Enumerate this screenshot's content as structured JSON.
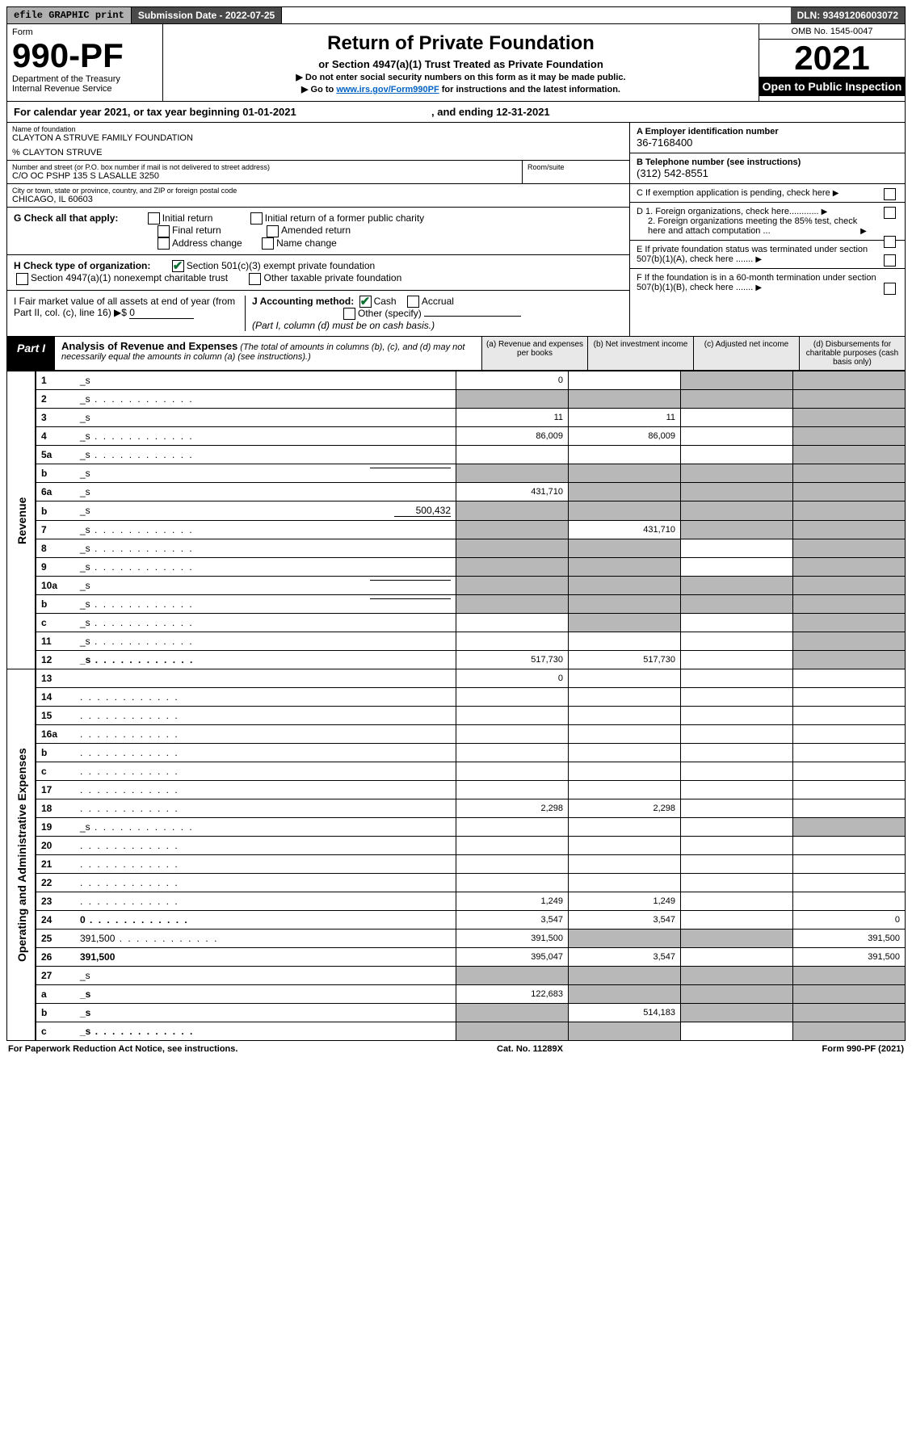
{
  "top": {
    "efile": "efile GRAPHIC print",
    "submission_label": "Submission Date - 2022-07-25",
    "dln": "DLN: 93491206003072"
  },
  "header": {
    "form_word": "Form",
    "form_no": "990-PF",
    "dept": "Department of the Treasury",
    "irs": "Internal Revenue Service",
    "title": "Return of Private Foundation",
    "subtitle": "or Section 4947(a)(1) Trust Treated as Private Foundation",
    "line1": "▶ Do not enter social security numbers on this form as it may be made public.",
    "line2_pre": "▶ Go to ",
    "line2_link": "www.irs.gov/Form990PF",
    "line2_post": " for instructions and the latest information.",
    "omb": "OMB No. 1545-0047",
    "year": "2021",
    "open": "Open to Public Inspection"
  },
  "cal_year": {
    "pre": "For calendar year 2021, or tax year beginning ",
    "begin": "01-01-2021",
    "mid": " , and ending ",
    "end": "12-31-2021"
  },
  "foundation": {
    "name_lbl": "Name of foundation",
    "name": "CLAYTON A STRUVE FAMILY FOUNDATION",
    "pct": "% CLAYTON STRUVE",
    "addr_lbl": "Number and street (or P.O. box number if mail is not delivered to street address)",
    "addr": "C/O OC PSHP 135 S LASALLE 3250",
    "room_lbl": "Room/suite",
    "city_lbl": "City or town, state or province, country, and ZIP or foreign postal code",
    "city": "CHICAGO, IL  60603"
  },
  "right": {
    "a_lbl": "A Employer identification number",
    "a_val": "36-7168400",
    "b_lbl": "B Telephone number (see instructions)",
    "b_val": "(312) 542-8551",
    "c_lbl": "C If exemption application is pending, check here",
    "d1": "D 1. Foreign organizations, check here............",
    "d2": "2. Foreign organizations meeting the 85% test, check here and attach computation ...",
    "e": "E  If private foundation status was terminated under section 507(b)(1)(A), check here .......",
    "f": "F  If the foundation is in a 60-month termination under section 507(b)(1)(B), check here ......."
  },
  "g": {
    "label": "G Check all that apply:",
    "opts": [
      "Initial return",
      "Final return",
      "Address change",
      "Initial return of a former public charity",
      "Amended return",
      "Name change"
    ]
  },
  "h": {
    "label": "H Check type of organization:",
    "opt1": "Section 501(c)(3) exempt private foundation",
    "opt2": "Section 4947(a)(1) nonexempt charitable trust",
    "opt3": "Other taxable private foundation"
  },
  "i": {
    "label": "I Fair market value of all assets at end of year (from Part II, col. (c), line 16) ▶$ ",
    "val": "0",
    "j_label": "J Accounting method:",
    "j_cash": "Cash",
    "j_accrual": "Accrual",
    "j_other": "Other (specify)",
    "j_note": "(Part I, column (d) must be on cash basis.)"
  },
  "part1": {
    "label": "Part I",
    "title": "Analysis of Revenue and Expenses",
    "note": " (The total of amounts in columns (b), (c), and (d) may not necessarily equal the amounts in column (a) (see instructions).)",
    "col_a": "(a) Revenue and expenses per books",
    "col_b": "(b) Net investment income",
    "col_c": "(c) Adjusted net income",
    "col_d": "(d) Disbursements for charitable purposes (cash basis only)"
  },
  "side_labels": {
    "rev": "Revenue",
    "exp": "Operating and Administrative Expenses"
  },
  "rows": [
    {
      "n": "1",
      "d": "_s",
      "a": "0",
      "b": "",
      "c": "_s"
    },
    {
      "n": "2",
      "d": "_s",
      "a": "_s",
      "b": "_s",
      "c": "_s",
      "dots": true
    },
    {
      "n": "3",
      "d": "_s",
      "a": "11",
      "b": "11",
      "c": ""
    },
    {
      "n": "4",
      "d": "_s",
      "a": "86,009",
      "b": "86,009",
      "c": "",
      "dots": true
    },
    {
      "n": "5a",
      "d": "_s",
      "a": "",
      "b": "",
      "c": "",
      "dots": true
    },
    {
      "n": "b",
      "d": "_s",
      "a": "_s",
      "b": "_s",
      "c": "_s",
      "inline_blank": true
    },
    {
      "n": "6a",
      "d": "_s",
      "a": "431,710",
      "b": "_s",
      "c": "_s"
    },
    {
      "n": "b",
      "d": "_s",
      "a": "_s",
      "b": "_s",
      "c": "_s",
      "inline_val": "500,432"
    },
    {
      "n": "7",
      "d": "_s",
      "a": "_s",
      "b": "431,710",
      "c": "_s",
      "dots": true
    },
    {
      "n": "8",
      "d": "_s",
      "a": "_s",
      "b": "_s",
      "c": "",
      "dots": true
    },
    {
      "n": "9",
      "d": "_s",
      "a": "_s",
      "b": "_s",
      "c": "",
      "dots": true
    },
    {
      "n": "10a",
      "d": "_s",
      "a": "_s",
      "b": "_s",
      "c": "_s",
      "inline_blank": true
    },
    {
      "n": "b",
      "d": "_s",
      "a": "_s",
      "b": "_s",
      "c": "_s",
      "dots": true,
      "inline_blank": true
    },
    {
      "n": "c",
      "d": "_s",
      "a": "",
      "b": "_s",
      "c": "",
      "dots": true
    },
    {
      "n": "11",
      "d": "_s",
      "a": "",
      "b": "",
      "c": "",
      "dots": true
    },
    {
      "n": "12",
      "d": "_s",
      "a": "517,730",
      "b": "517,730",
      "c": "",
      "bold": true,
      "dots": true
    },
    {
      "n": "13",
      "d": "",
      "a": "0",
      "b": "",
      "c": ""
    },
    {
      "n": "14",
      "d": "",
      "a": "",
      "b": "",
      "c": "",
      "dots": true
    },
    {
      "n": "15",
      "d": "",
      "a": "",
      "b": "",
      "c": "",
      "dots": true
    },
    {
      "n": "16a",
      "d": "",
      "a": "",
      "b": "",
      "c": "",
      "dots": true
    },
    {
      "n": "b",
      "d": "",
      "a": "",
      "b": "",
      "c": "",
      "dots": true
    },
    {
      "n": "c",
      "d": "",
      "a": "",
      "b": "",
      "c": "",
      "dots": true
    },
    {
      "n": "17",
      "d": "",
      "a": "",
      "b": "",
      "c": "",
      "dots": true
    },
    {
      "n": "18",
      "d": "",
      "a": "2,298",
      "b": "2,298",
      "c": "",
      "dots": true
    },
    {
      "n": "19",
      "d": "_s",
      "a": "",
      "b": "",
      "c": "",
      "dots": true
    },
    {
      "n": "20",
      "d": "",
      "a": "",
      "b": "",
      "c": "",
      "dots": true
    },
    {
      "n": "21",
      "d": "",
      "a": "",
      "b": "",
      "c": "",
      "dots": true
    },
    {
      "n": "22",
      "d": "",
      "a": "",
      "b": "",
      "c": "",
      "dots": true
    },
    {
      "n": "23",
      "d": "",
      "a": "1,249",
      "b": "1,249",
      "c": "",
      "dots": true
    },
    {
      "n": "24",
      "d": "0",
      "a": "3,547",
      "b": "3,547",
      "c": "",
      "bold": true,
      "dots": true
    },
    {
      "n": "25",
      "d": "391,500",
      "a": "391,500",
      "b": "_s",
      "c": "_s",
      "dots": true
    },
    {
      "n": "26",
      "d": "391,500",
      "a": "395,047",
      "b": "3,547",
      "c": "",
      "bold": true
    },
    {
      "n": "27",
      "d": "_s",
      "a": "_s",
      "b": "_s",
      "c": "_s"
    },
    {
      "n": "a",
      "d": "_s",
      "a": "122,683",
      "b": "_s",
      "c": "_s",
      "bold": true
    },
    {
      "n": "b",
      "d": "_s",
      "a": "_s",
      "b": "514,183",
      "c": "_s",
      "bold": true
    },
    {
      "n": "c",
      "d": "_s",
      "a": "_s",
      "b": "_s",
      "c": "",
      "bold": true,
      "dots": true
    }
  ],
  "footer": {
    "left": "For Paperwork Reduction Act Notice, see instructions.",
    "mid": "Cat. No. 11289X",
    "right": "Form 990-PF (2021)"
  }
}
